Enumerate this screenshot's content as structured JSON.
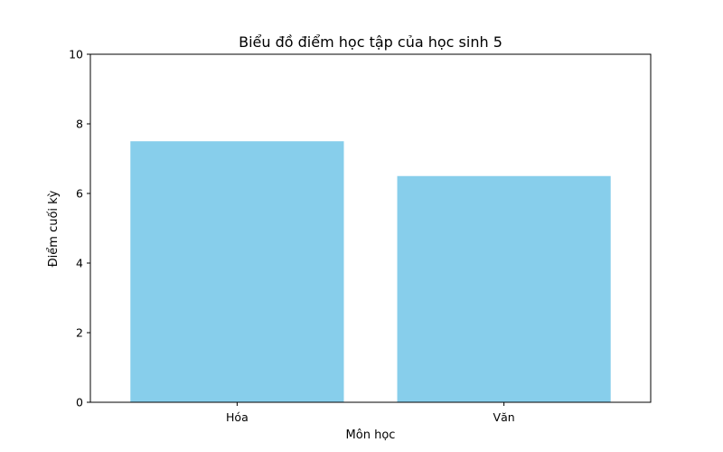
{
  "chart_data": {
    "type": "bar",
    "title": "Biểu đồ điểm học tập của học sinh 5",
    "xlabel": "Môn học",
    "ylabel": "Điểm cuối kỳ",
    "categories": [
      "Hóa",
      "Văn"
    ],
    "values": [
      7.5,
      6.5
    ],
    "ylim": [
      0,
      10
    ],
    "yticks": [
      "0",
      "2",
      "4",
      "6",
      "8",
      "10"
    ],
    "grid": false,
    "bar_color": "#87CEEB"
  }
}
